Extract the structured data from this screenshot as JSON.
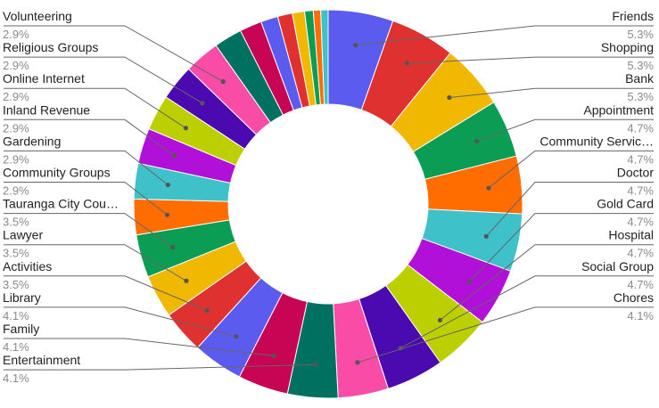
{
  "chart_data": {
    "type": "pie",
    "donut": true,
    "title": "",
    "slices": [
      {
        "label": "Friends",
        "display_value": "5.3%",
        "value": 5.3,
        "color": "#5b5bf0"
      },
      {
        "label": "Shopping",
        "display_value": "5.3%",
        "value": 5.3,
        "color": "#e03131"
      },
      {
        "label": "Bank",
        "display_value": "5.3%",
        "value": 5.3,
        "color": "#f0b800"
      },
      {
        "label": "Appointment",
        "display_value": "4.7%",
        "value": 4.7,
        "color": "#0b9d54"
      },
      {
        "label": "Community Servic…",
        "display_value": "4.7%",
        "value": 4.7,
        "color": "#ff6d00"
      },
      {
        "label": "Doctor",
        "display_value": "4.7%",
        "value": 4.7,
        "color": "#3ec1c9"
      },
      {
        "label": "Gold Card",
        "display_value": "4.7%",
        "value": 4.7,
        "color": "#b010d8"
      },
      {
        "label": "Hospital",
        "display_value": "4.7%",
        "value": 4.7,
        "color": "#bccf00"
      },
      {
        "label": "Social Group",
        "display_value": "4.7%",
        "value": 4.7,
        "color": "#4a0ab0"
      },
      {
        "label": "Chores",
        "display_value": "4.1%",
        "value": 4.1,
        "color": "#f84ca6"
      },
      {
        "label": "Entertainment",
        "display_value": "4.1%",
        "value": 4.1,
        "color": "#007060"
      },
      {
        "label": "Family",
        "display_value": "4.1%",
        "value": 4.1,
        "color": "#c80455"
      },
      {
        "label": "Library",
        "display_value": "4.1%",
        "value": 4.1,
        "color": "#5b5bf0"
      },
      {
        "label": "Activities",
        "display_value": "3.5%",
        "value": 3.5,
        "color": "#e03131"
      },
      {
        "label": "Lawyer",
        "display_value": "3.5%",
        "value": 3.5,
        "color": "#f0b800"
      },
      {
        "label": "Tauranga City Cou…",
        "display_value": "3.5%",
        "value": 3.5,
        "color": "#0b9d54"
      },
      {
        "label": "Community Groups",
        "display_value": "2.9%",
        "value": 2.9,
        "color": "#ff6d00"
      },
      {
        "label": "Gardening",
        "display_value": "2.9%",
        "value": 2.9,
        "color": "#3ec1c9"
      },
      {
        "label": "Inland Revenue",
        "display_value": "2.9%",
        "value": 2.9,
        "color": "#b010d8"
      },
      {
        "label": "Online Internet",
        "display_value": "2.9%",
        "value": 2.9,
        "color": "#bccf00"
      },
      {
        "label": "Religious Groups",
        "display_value": "2.9%",
        "value": 2.9,
        "color": "#4a0ab0"
      },
      {
        "label": "Volunteering",
        "display_value": "2.9%",
        "value": 2.9,
        "color": "#f84ca6"
      },
      {
        "label": "",
        "display_value": "",
        "value": 2.3,
        "color": "#007060"
      },
      {
        "label": "",
        "display_value": "",
        "value": 1.8,
        "color": "#c80455"
      },
      {
        "label": "",
        "display_value": "",
        "value": 1.4,
        "color": "#5b5bf0"
      },
      {
        "label": "",
        "display_value": "",
        "value": 1.2,
        "color": "#e03131"
      },
      {
        "label": "",
        "display_value": "",
        "value": 1.0,
        "color": "#f0b800"
      },
      {
        "label": "",
        "display_value": "",
        "value": 0.7,
        "color": "#0b9d54"
      },
      {
        "label": "",
        "display_value": "",
        "value": 0.6,
        "color": "#ff6d00"
      },
      {
        "label": "",
        "display_value": "",
        "value": 0.6,
        "color": "#3ec1c9"
      }
    ],
    "legend": "none",
    "label_line_color": "#666666"
  }
}
